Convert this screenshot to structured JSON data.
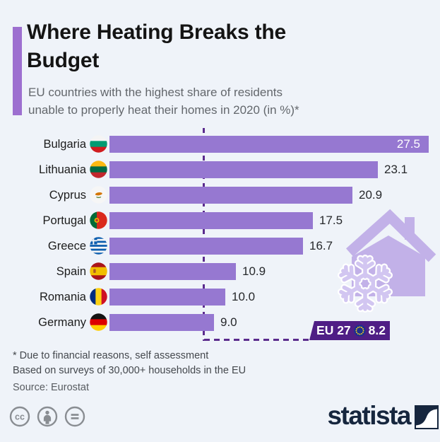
{
  "header": {
    "title": "Where Heating Breaks the Budget",
    "subtitle_line1": "EU countries with the highest share of residents",
    "subtitle_line2": "unable to properly heat their homes in 2020 (in %)*"
  },
  "chart_data": {
    "type": "bar",
    "orientation": "horizontal",
    "unit": "%",
    "title": "Where Heating Breaks the Budget",
    "categories": [
      "Bulgaria",
      "Lithuania",
      "Cyprus",
      "Portugal",
      "Greece",
      "Spain",
      "Romania",
      "Germany"
    ],
    "values": [
      27.5,
      23.1,
      20.9,
      17.5,
      16.7,
      10.9,
      10.0,
      9.0
    ],
    "value_labels": [
      "27.5",
      "23.1",
      "20.9",
      "17.5",
      "16.7",
      "10.9",
      "10.0",
      "9.0"
    ],
    "xlim": [
      0,
      28.5
    ],
    "grid": false,
    "legend": false,
    "reference_line": {
      "label": "EU 27",
      "value": 8.2,
      "value_label": "8.2"
    }
  },
  "rows": [
    {
      "country": "Bulgaria",
      "value": 27.5,
      "value_label": "27.5",
      "value_inside": true,
      "flag": {
        "stripes": "h",
        "colors": [
          "#f4f4f4",
          "#009b72",
          "#d01c1f"
        ]
      }
    },
    {
      "country": "Lithuania",
      "value": 23.1,
      "value_label": "23.1",
      "value_inside": false,
      "flag": {
        "stripes": "h",
        "colors": [
          "#fdb913",
          "#006a44",
          "#c1272d"
        ]
      }
    },
    {
      "country": "Cyprus",
      "value": 20.9,
      "value_label": "20.9",
      "value_inside": false,
      "flag": {
        "stripes": "h",
        "colors": [
          "#f6f6f6"
        ],
        "emblem": "cyprus"
      }
    },
    {
      "country": "Portugal",
      "value": 17.5,
      "value_label": "17.5",
      "value_inside": false,
      "flag": {
        "stripes": "v",
        "colors": [
          "#046a38",
          "#da291c"
        ],
        "widths": [
          0.4,
          0.6
        ],
        "emblem": "portugal"
      }
    },
    {
      "country": "Greece",
      "value": 16.7,
      "value_label": "16.7",
      "value_inside": false,
      "flag": {
        "stripes": "h",
        "colors": [
          "#0d5eaf",
          "#f6f6f6",
          "#0d5eaf",
          "#f6f6f6",
          "#0d5eaf",
          "#f6f6f6",
          "#0d5eaf",
          "#f6f6f6",
          "#0d5eaf"
        ],
        "emblem": "greece"
      }
    },
    {
      "country": "Spain",
      "value": 10.9,
      "value_label": "10.9",
      "value_inside": false,
      "flag": {
        "stripes": "h",
        "colors": [
          "#aa151b",
          "#f1bf00",
          "#aa151b"
        ],
        "widths": [
          0.27,
          0.46,
          0.27
        ],
        "emblem": "spain"
      }
    },
    {
      "country": "Romania",
      "value": 10.0,
      "value_label": "10.0",
      "value_inside": false,
      "flag": {
        "stripes": "v",
        "colors": [
          "#002b7f",
          "#fcd116",
          "#ce1126"
        ]
      }
    },
    {
      "country": "Germany",
      "value": 9.0,
      "value_label": "9.0",
      "value_inside": false,
      "flag": {
        "stripes": "h",
        "colors": [
          "#141414",
          "#dd0000",
          "#ffce00"
        ]
      }
    }
  ],
  "eu_badge": {
    "label": "EU 27",
    "value": "8.2"
  },
  "footnotes": {
    "line1": "* Due to financial reasons, self assessment",
    "line2": "Based on surveys of 30,000+ households in the EU",
    "source": "Source: Eurostat"
  },
  "branding": {
    "logo_text": "statista"
  },
  "license": {
    "icon_names": [
      "cc-icon",
      "attribution-icon",
      "no-derivatives-icon"
    ]
  },
  "colors": {
    "background": "#eff3f9",
    "accent_bar": "#9d6fd0",
    "bar": "#9678d1",
    "reference_dash": "#5b2b8d",
    "badge_background": "#4f1e85",
    "house": "#c2b1e8",
    "snowflake": "#d2c6f1",
    "statista_navy": "#16263e"
  }
}
